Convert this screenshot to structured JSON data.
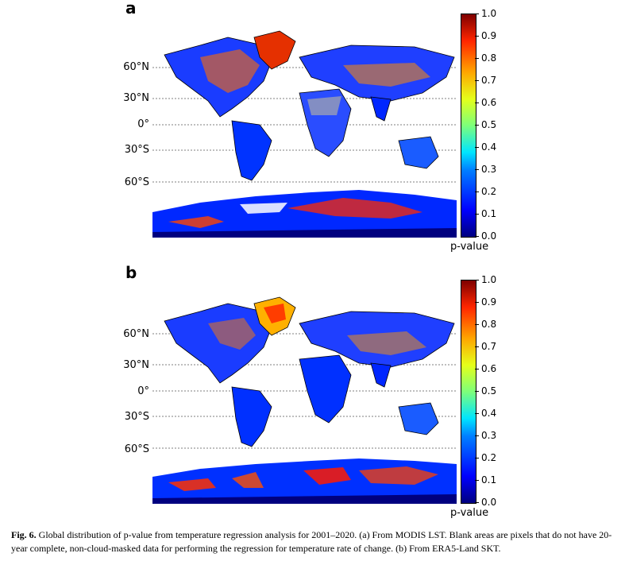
{
  "figure": {
    "panels": [
      {
        "id": "a",
        "label": "a"
      },
      {
        "id": "b",
        "label": "b"
      }
    ],
    "latitude_labels": [
      "60°N",
      "30°N",
      "0°",
      "30°S",
      "60°S"
    ],
    "colorbar": {
      "ticks": [
        "1.0",
        "0.9",
        "0.8",
        "0.7",
        "0.6",
        "0.5",
        "0.4",
        "0.3",
        "0.2",
        "0.1",
        "0.0"
      ],
      "title": "p-value",
      "colormap": "jet"
    },
    "caption": {
      "label": "Fig. 6.",
      "text": "Global distribution of p-value from temperature regression analysis for 2001–2020. (a) From MODIS LST. Blank areas are pixels that do not have 20-year complete, non-cloud-masked data for performing the regression for temperature rate of change. (b) From ERA5-Land SKT."
    }
  },
  "colors": {
    "low": "#00007f",
    "mid": "#7dff7a",
    "high": "#7f0000"
  }
}
